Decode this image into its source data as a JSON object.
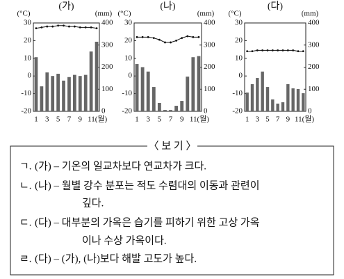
{
  "chart_data": [
    {
      "type": "combo",
      "title": "(가)",
      "y_unit": "(°C)",
      "y2_unit": "(mm)",
      "categories": [
        "1",
        null,
        "3",
        null,
        "5",
        null,
        "7",
        null,
        "9",
        null,
        "11(월)",
        null
      ],
      "ylim": [
        -20,
        30
      ],
      "yticks": [
        -20,
        -10,
        0,
        10,
        20,
        30
      ],
      "y2lim": [
        0,
        400
      ],
      "y2ticks": [
        0,
        100,
        200,
        300,
        400
      ],
      "series": [
        {
          "type": "line",
          "color": "#111",
          "values": [
            27,
            27.5,
            28,
            28,
            28.5,
            28.5,
            28,
            28,
            27.5,
            27.5,
            27.5,
            27
          ]
        },
        {
          "type": "bar",
          "color": "#666",
          "axis": "y2",
          "values": [
            245,
            113,
            176,
            160,
            170,
            139,
            155,
            165,
            160,
            165,
            271,
            315
          ]
        }
      ]
    },
    {
      "type": "combo",
      "title": "(나)",
      "y_unit": "(°C)",
      "y2_unit": "(mm)",
      "categories": [
        "1",
        null,
        "3",
        null,
        "5",
        null,
        "7",
        null,
        "9",
        null,
        "11(월)",
        null
      ],
      "ylim": [
        -20,
        30
      ],
      "yticks": [
        -20,
        -10,
        0,
        10,
        20,
        30
      ],
      "y2lim": [
        0,
        400
      ],
      "y2ticks": [
        0,
        100,
        200,
        300,
        400
      ],
      "series": [
        {
          "type": "line",
          "color": "#111",
          "values": [
            22,
            22,
            22,
            21.5,
            20.5,
            19,
            19,
            20,
            21.5,
            22.5,
            22,
            22
          ]
        },
        {
          "type": "bar",
          "color": "#666",
          "axis": "y2",
          "values": [
            214,
            200,
            180,
            110,
            38,
            6,
            6,
            25,
            47,
            157,
            245,
            250
          ]
        }
      ]
    },
    {
      "type": "combo",
      "title": "(다)",
      "y_unit": "(°C)",
      "y2_unit": "(mm)",
      "categories": [
        "1",
        null,
        "3",
        null,
        "5",
        null,
        "7",
        null,
        "9",
        null,
        "11(월)",
        null
      ],
      "ylim": [
        -20,
        30
      ],
      "yticks": [
        -20,
        -10,
        0,
        10,
        20,
        30
      ],
      "y2lim": [
        0,
        400
      ],
      "y2ticks": [
        0,
        100,
        200,
        300,
        400
      ],
      "series": [
        {
          "type": "line",
          "color": "#111",
          "values": [
            14,
            14,
            14.5,
            14.5,
            14.5,
            14.5,
            14.5,
            14.5,
            14.5,
            14.5,
            14,
            14
          ]
        },
        {
          "type": "bar",
          "color": "#666",
          "axis": "y2",
          "values": [
            85,
            123,
            151,
            180,
            110,
            54,
            35,
            41,
            123,
            104,
            101,
            82
          ]
        }
      ]
    }
  ],
  "box": {
    "title": "〈 보 기 〉",
    "items": [
      {
        "label": "ㄱ.",
        "lines": [
          "(가) – 기온의 일교차보다 연교차가 크다."
        ]
      },
      {
        "label": "ㄴ.",
        "lines": [
          "(나) – 월별 강수 분포는 적도 수렴대의 이동과 관련이",
          "깊다."
        ]
      },
      {
        "label": "ㄷ.",
        "lines": [
          "(다) – 대부분의 가옥은 습기를 피하기 위한 고상 가옥",
          "이나 수상 가옥이다."
        ]
      },
      {
        "label": "ㄹ.",
        "lines": [
          "(다) – (가), (나)보다 해발 고도가 높다."
        ]
      }
    ]
  }
}
